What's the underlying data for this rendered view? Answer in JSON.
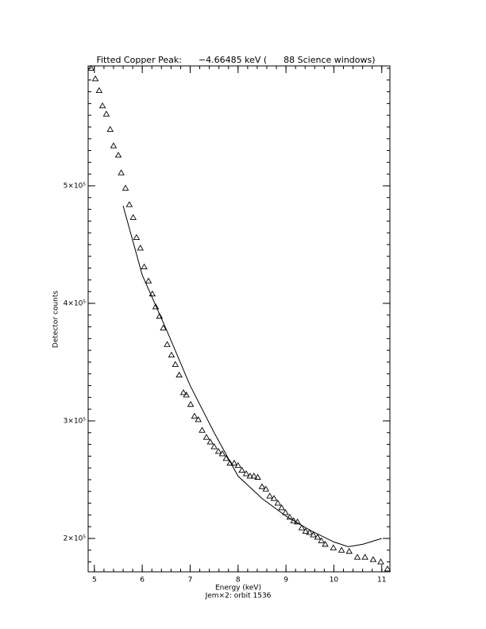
{
  "chart_data": {
    "type": "scatter",
    "title": "Fitted Copper Peak:      −4.66485 keV (      88 Science windows)",
    "xlabel": "Energy (keV)",
    "subtitle": "Jem×2: orbit 1536",
    "ylabel": "Detector counts",
    "xlim": [
      4.87,
      11.17
    ],
    "ylim": [
      171600,
      602000
    ],
    "xticks": [
      5,
      6,
      7,
      8,
      9,
      10,
      11
    ],
    "yticks": [
      {
        "value": 200000,
        "label": "2×10⁵"
      },
      {
        "value": 300000,
        "label": "3×10⁵"
      },
      {
        "value": 400000,
        "label": "4×10⁵"
      },
      {
        "value": 500000,
        "label": "5×10⁵"
      }
    ],
    "xminor_step": 0.2,
    "yminor_step": 10000,
    "series": [
      {
        "marker": "triangle",
        "color": "#000000",
        "x": [
          4.93,
          5.02,
          5.1,
          5.17,
          5.25,
          5.33,
          5.4,
          5.5,
          5.56,
          5.65,
          5.73,
          5.81,
          5.88,
          5.96,
          6.04,
          6.13,
          6.21,
          6.28,
          6.36,
          6.44,
          6.52,
          6.61,
          6.69,
          6.77,
          6.86,
          6.92,
          7.01,
          7.09,
          7.17,
          7.25,
          7.34,
          7.42,
          7.5,
          7.59,
          7.67,
          7.75,
          7.83,
          7.92,
          8.0,
          8.08,
          8.17,
          8.25,
          8.33,
          8.41,
          8.5,
          8.58,
          8.66,
          8.75,
          8.83,
          8.91,
          8.99,
          9.08,
          9.16,
          9.24,
          9.33,
          9.41,
          9.49,
          9.57,
          9.66,
          9.74,
          9.82,
          9.99,
          10.16,
          10.32,
          10.49,
          10.65,
          10.82,
          10.98,
          11.12
        ],
        "values": [
          600000,
          591000,
          581000,
          568000,
          561000,
          548000,
          534000,
          526000,
          511000,
          498000,
          484000,
          473000,
          456000,
          447000,
          431000,
          419000,
          408000,
          397000,
          389000,
          379000,
          365000,
          356000,
          348000,
          339000,
          324000,
          322000,
          314000,
          304000,
          301000,
          292000,
          286000,
          282000,
          278000,
          274000,
          272000,
          268000,
          264000,
          264000,
          262000,
          258000,
          255000,
          253000,
          253000,
          252000,
          244000,
          242000,
          236000,
          234000,
          230000,
          226000,
          222000,
          218000,
          215000,
          214000,
          209000,
          206000,
          205000,
          203000,
          201000,
          198000,
          195000,
          192000,
          190000,
          189000,
          184000,
          184000,
          182000,
          180000,
          174000
        ]
      },
      {
        "marker": "line",
        "color": "#000000",
        "x": [
          5.6,
          6.0,
          6.5,
          7.0,
          7.5,
          8.0,
          8.5,
          9.0,
          9.5,
          10.0,
          10.3,
          10.6,
          11.0
        ],
        "values": [
          483000,
          424000,
          378000,
          330000,
          290000,
          253000,
          234000,
          219000,
          207000,
          197000,
          193000,
          195000,
          200000
        ]
      }
    ]
  }
}
